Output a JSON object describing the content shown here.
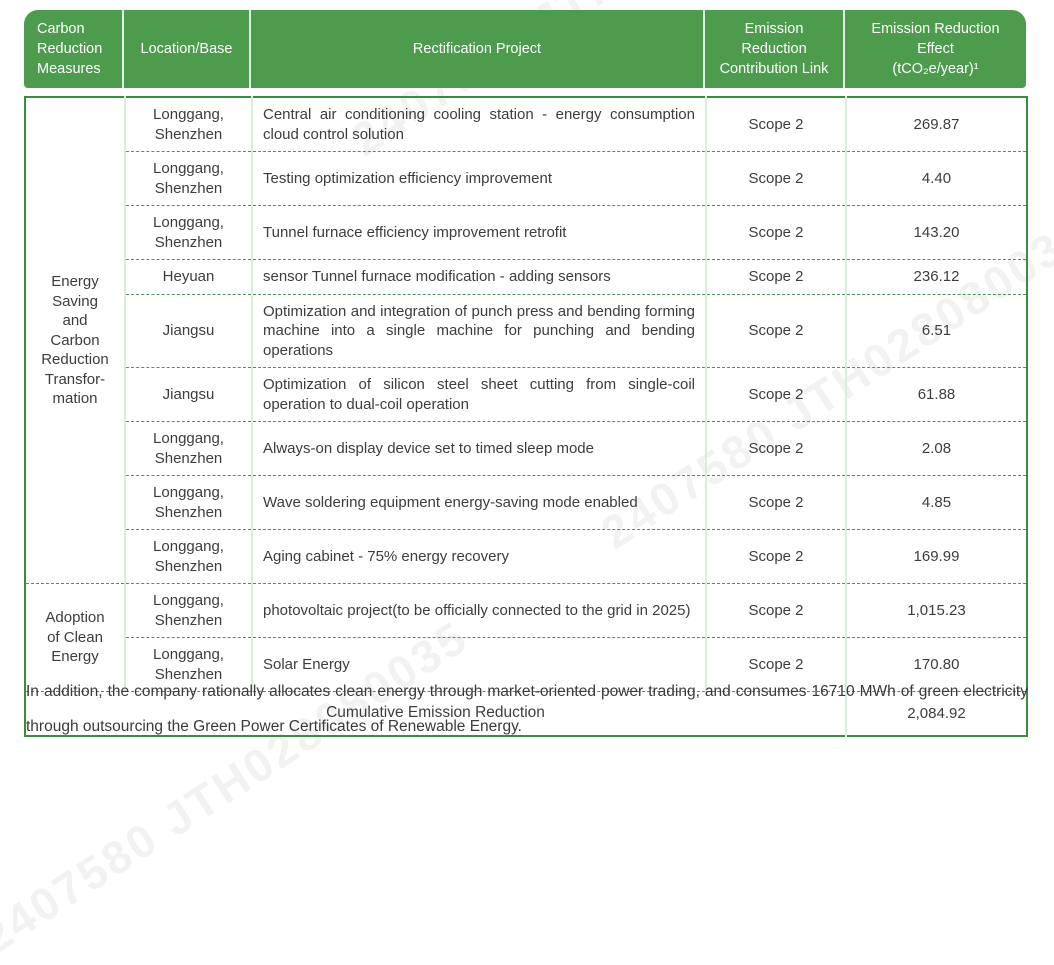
{
  "watermark": {
    "text": "2407580 JTH028080035"
  },
  "table": {
    "headers": [
      "Carbon\nReduction\nMeasures",
      "Location/Base",
      "Rectification Project",
      "Emission\nReduction\nContribution Link",
      "Emission Reduction\nEffect\n(tCO₂e/year)¹"
    ],
    "groups": [
      {
        "label": "Energy\nSaving\nand\nCarbon\nReduction\nTransfor-\nmation",
        "span": 9
      },
      {
        "label": "Adoption\nof Clean\nEnergy",
        "span": 2
      }
    ],
    "rows": [
      {
        "location": "Longgang,\nShenzhen",
        "project": "Central air conditioning cooling station - energy consumption cloud control solution",
        "scope": "Scope 2",
        "value": "269.87"
      },
      {
        "location": "Longgang,\nShenzhen",
        "project": "Testing optimization efficiency improvement",
        "scope": "Scope 2",
        "value": "4.40"
      },
      {
        "location": "Longgang,\nShenzhen",
        "project": "Tunnel furnace efficiency improvement retrofit",
        "scope": "Scope 2",
        "value": "143.20"
      },
      {
        "location": "Heyuan",
        "project": "sensor Tunnel furnace modification - adding sensors",
        "scope": "Scope 2",
        "value": "236.12"
      },
      {
        "location": "Jiangsu",
        "project": "Optimization and integration of punch press and bending forming machine into a single machine for punching and bending operations",
        "scope": "Scope 2",
        "value": "6.51"
      },
      {
        "location": "Jiangsu",
        "project": "Optimization of silicon steel sheet cutting from single-coil operation to dual-coil operation",
        "scope": "Scope 2",
        "value": "61.88"
      },
      {
        "location": "Longgang,\nShenzhen",
        "project": "Always-on display device set to timed sleep mode",
        "scope": "Scope 2",
        "value": "2.08"
      },
      {
        "location": "Longgang,\nShenzhen",
        "project": "Wave soldering equipment energy-saving mode enabled",
        "scope": "Scope 2",
        "value": "4.85"
      },
      {
        "location": "Longgang,\nShenzhen",
        "project": "Aging cabinet - 75% energy recovery",
        "scope": "Scope 2",
        "value": "169.99"
      },
      {
        "location": "Longgang,\nShenzhen",
        "project": "photovoltaic project(to be officially connected to the grid in 2025)",
        "scope": "Scope 2",
        "value": "1,015.23"
      },
      {
        "location": "Longgang,\nShenzhen",
        "project": "Solar Energy",
        "scope": "Scope 2",
        "value": "170.80"
      }
    ],
    "footer_row": {
      "label": "Cumulative Emission Reduction",
      "value": "2,084.92"
    }
  },
  "note": "In addition, the company rationally allocates clean energy through market-oriented power trading, and consumes 16710 MWh of green electricity through outsourcing the Green Power Certificates of Renewable Energy.",
  "colors": {
    "header_green": "#4d9b4d",
    "outer_border_green": "#3b8c3e",
    "dashed_divider_green": "#4a964a",
    "pale_divider_green": "#dcecdc",
    "body_text": "#3d3d3d"
  }
}
